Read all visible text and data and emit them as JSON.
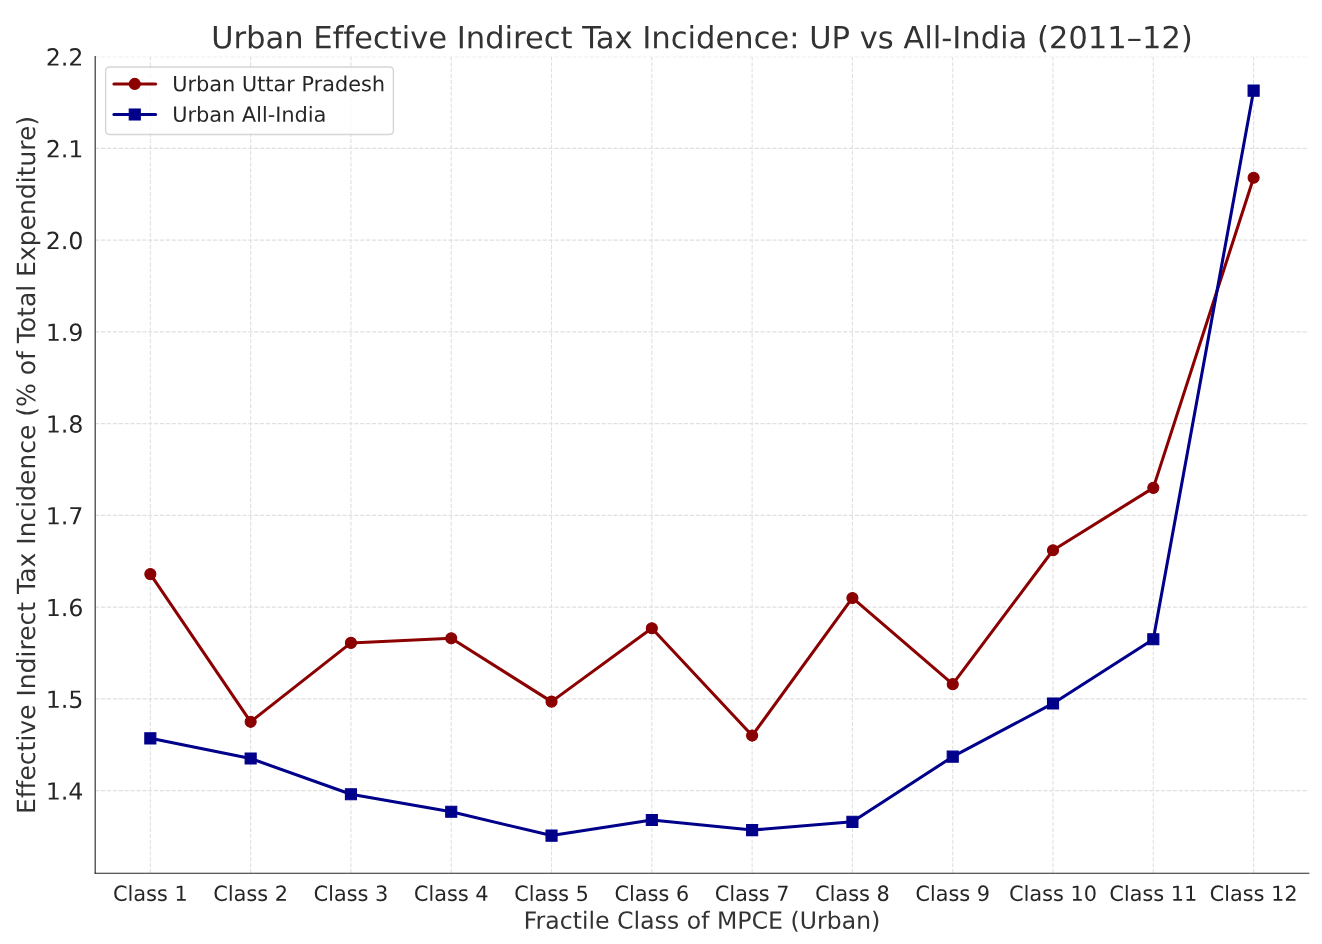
{
  "chart_data": {
    "type": "line",
    "title": "Urban Effective Indirect Tax Incidence: UP vs All-India (2011–12)",
    "xlabel": "Fractile Class of MPCE (Urban)",
    "ylabel": "Effective Indirect Tax Incidence (% of Total Expenditure)",
    "categories": [
      "Class 1",
      "Class 2",
      "Class 3",
      "Class 4",
      "Class 5",
      "Class 6",
      "Class 7",
      "Class 8",
      "Class 9",
      "Class 10",
      "Class 11",
      "Class 12"
    ],
    "series": [
      {
        "name": "Urban Uttar Pradesh",
        "color": "#8b0000",
        "marker": "circle",
        "values": [
          1.636,
          1.475,
          1.561,
          1.566,
          1.497,
          1.577,
          1.46,
          1.61,
          1.516,
          1.662,
          1.73,
          2.068
        ]
      },
      {
        "name": "Urban All-India",
        "color": "#00008b",
        "marker": "square",
        "values": [
          1.457,
          1.435,
          1.396,
          1.377,
          1.351,
          1.368,
          1.357,
          1.366,
          1.437,
          1.495,
          1.565,
          2.163
        ]
      }
    ],
    "ylim": [
      1.31,
      2.2
    ],
    "yticks": [
      1.4,
      1.5,
      1.6,
      1.7,
      1.8,
      1.9,
      {
        "value": 2.0,
        "label": "2.0"
      },
      2.1,
      2.2
    ],
    "grid": true,
    "legend": "top left",
    "line_style": "solid"
  }
}
